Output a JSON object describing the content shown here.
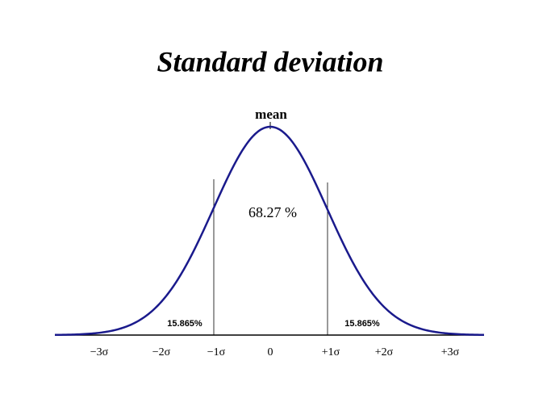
{
  "title": "Standard deviation",
  "mean_label": "mean",
  "center_label": "68.27 %",
  "tail_labels": [
    "15.865%",
    "15.865%"
  ],
  "axis_labels": [
    "−3σ",
    "−2σ",
    "−1σ",
    "0",
    "+1σ",
    "+2σ",
    "+3σ"
  ]
}
